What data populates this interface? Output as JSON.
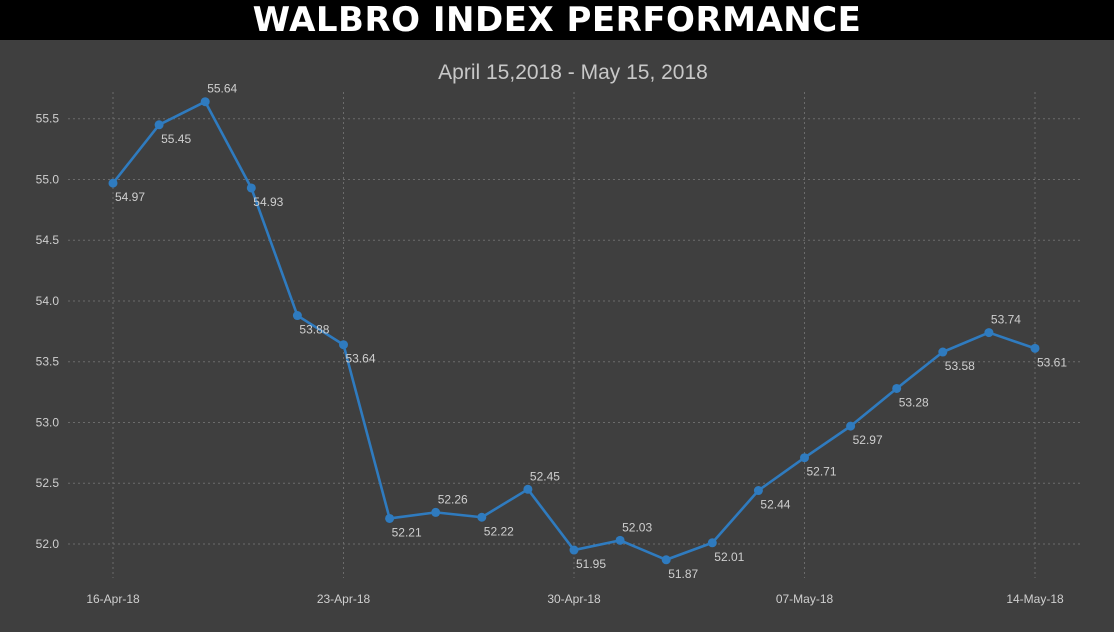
{
  "header": {
    "title": "WALBRO INDEX PERFORMANCE"
  },
  "chart_data": {
    "type": "line",
    "title": "WALBRO INDEX PERFORMANCE",
    "subtitle": "April 15,2018 - May 15, 2018",
    "xlabel": "",
    "ylabel": "",
    "x": [
      "2018-04-16",
      "2018-04-17",
      "2018-04-18",
      "2018-04-19",
      "2018-04-20",
      "2018-04-23",
      "2018-04-24",
      "2018-04-25",
      "2018-04-26",
      "2018-04-27",
      "2018-04-30",
      "2018-05-01",
      "2018-05-02",
      "2018-05-03",
      "2018-05-04",
      "2018-05-07",
      "2018-05-08",
      "2018-05-09",
      "2018-05-10",
      "2018-05-11",
      "2018-05-14"
    ],
    "series": [
      {
        "values": [
          54.97,
          55.45,
          55.64,
          54.93,
          53.88,
          53.64,
          52.21,
          52.26,
          52.22,
          52.45,
          51.95,
          52.03,
          51.87,
          52.01,
          52.44,
          52.71,
          52.97,
          53.28,
          53.58,
          53.74,
          53.61
        ]
      }
    ],
    "data_labels": [
      "54.97",
      "55.45",
      "55.64",
      "54.93",
      "53.88",
      "53.64",
      "52.21",
      "52.26",
      "52.22",
      "52.45",
      "51.95",
      "52.03",
      "51.87",
      "52.01",
      "52.44",
      "52.71",
      "52.97",
      "53.28",
      "53.58",
      "53.74",
      "53.61"
    ],
    "x_ticks": [
      {
        "index": 0,
        "label": "16-Apr-18"
      },
      {
        "index": 5,
        "label": "23-Apr-18"
      },
      {
        "index": 10,
        "label": "30-Apr-18"
      },
      {
        "index": 15,
        "label": "07-May-18"
      },
      {
        "index": 20,
        "label": "14-May-18"
      }
    ],
    "y_ticks": [
      "52.0",
      "52.5",
      "53.0",
      "53.5",
      "54.0",
      "54.5",
      "55.0",
      "55.5"
    ],
    "ylim": [
      51.72,
      55.72
    ],
    "grid": true,
    "legend": "none",
    "colors": {
      "line": "#2f7bbf",
      "background": "#3f3f3f",
      "header": "#000000"
    }
  }
}
